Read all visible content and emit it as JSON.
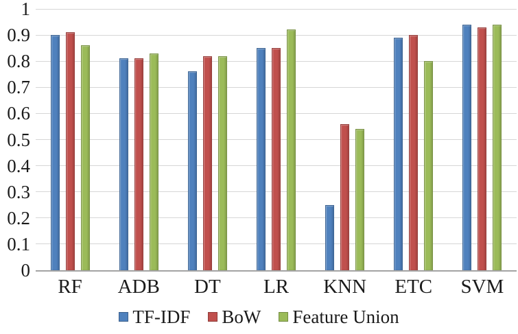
{
  "chart_data": {
    "type": "bar",
    "title": "",
    "xlabel": "",
    "ylabel": "",
    "categories": [
      "RF",
      "ADB",
      "DT",
      "LR",
      "KNN",
      "ETC",
      "SVM"
    ],
    "series": [
      {
        "name": "TF-IDF",
        "color": "#4F81BD",
        "values": [
          0.9,
          0.81,
          0.76,
          0.85,
          0.25,
          0.89,
          0.94
        ]
      },
      {
        "name": "BoW",
        "color": "#C0504D",
        "values": [
          0.91,
          0.81,
          0.82,
          0.85,
          0.56,
          0.9,
          0.93
        ]
      },
      {
        "name": "Feature Union",
        "color": "#9BBB59",
        "values": [
          0.86,
          0.83,
          0.82,
          0.92,
          0.54,
          0.8,
          0.94
        ]
      }
    ],
    "y_ticks": [
      "1",
      "0.9",
      "0.8",
      "0.7",
      "0.6",
      "0.5",
      "0.4",
      "0.3",
      "0.2",
      "0.1",
      "0"
    ],
    "ylim": [
      0,
      1
    ],
    "grid": true,
    "legend_position": "bottom",
    "colors": {
      "gridline": "#d6d6d6",
      "axis_line": "#a3a3a3",
      "text": "#1a1a1a",
      "background": "#ffffff"
    }
  }
}
